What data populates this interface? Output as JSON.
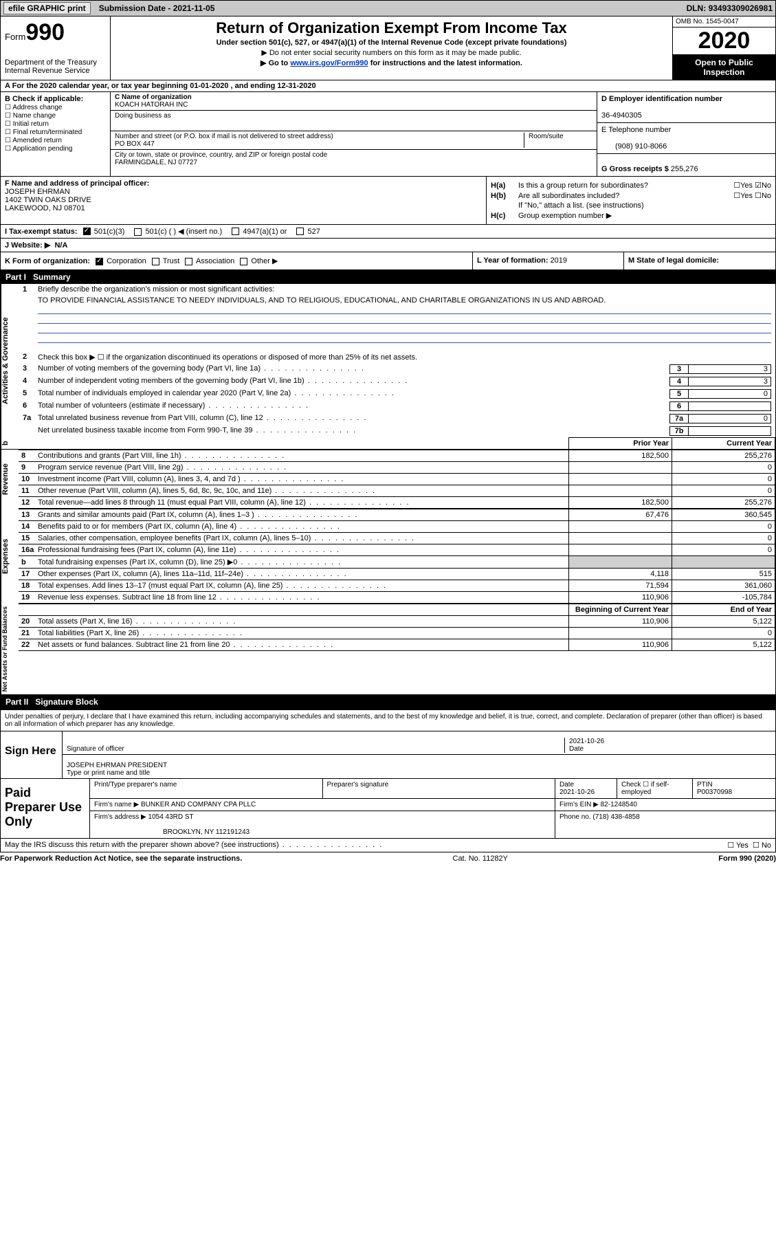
{
  "topbar": {
    "efile": "efile GRAPHIC print",
    "submission_label": "Submission Date - ",
    "submission_date": "2021-11-05",
    "dln_label": "DLN: ",
    "dln": "93493309026981"
  },
  "header": {
    "form_word": "Form",
    "form_num": "990",
    "dept": "Department of the Treasury",
    "irs": "Internal Revenue Service",
    "title": "Return of Organization Exempt From Income Tax",
    "sub1": "Under section 501(c), 527, or 4947(a)(1) of the Internal Revenue Code (except private foundations)",
    "sub2": "▶ Do not enter social security numbers on this form as it may be made public.",
    "sub3_pre": "▶ Go to ",
    "sub3_link": "www.irs.gov/Form990",
    "sub3_post": " for instructions and the latest information.",
    "omb": "OMB No. 1545-0047",
    "year": "2020",
    "open": "Open to Public Inspection"
  },
  "rowA": "For the 2020 calendar year, or tax year beginning 01-01-2020   , and ending 12-31-2020",
  "colB": {
    "hdr": "B Check if applicable:",
    "opts": [
      "Address change",
      "Name change",
      "Initial return",
      "Final return/terminated",
      "Amended return",
      "Application pending"
    ]
  },
  "C": {
    "name_lbl": "C Name of organization",
    "name": "KOACH HATORAH INC",
    "dba_lbl": "Doing business as",
    "street_lbl": "Number and street (or P.O. box if mail is not delivered to street address)",
    "room_lbl": "Room/suite",
    "street": "PO BOX 447",
    "city_lbl": "City or town, state or province, country, and ZIP or foreign postal code",
    "city": "FARMINGDALE, NJ  07727"
  },
  "D": {
    "lbl": "D Employer identification number",
    "val": "36-4940305"
  },
  "E": {
    "lbl": "E Telephone number",
    "val": "(908) 910-8066"
  },
  "G": {
    "lbl": "G Gross receipts $ ",
    "val": "255,276"
  },
  "F": {
    "lbl": "F  Name and address of principal officer:",
    "name": "JOSEPH EHRMAN",
    "addr1": "1402 TWIN OAKS DRIVE",
    "addr2": "LAKEWOOD, NJ  08701"
  },
  "H": {
    "a_lbl": "H(a)",
    "a_txt": "Is this a group return for subordinates?",
    "a_yes": "Yes",
    "a_no": "No",
    "b_lbl": "H(b)",
    "b_txt": "Are all subordinates included?",
    "b_yes": "Yes",
    "b_no": "No",
    "b_note": "If \"No,\" attach a list. (see instructions)",
    "c_lbl": "H(c)",
    "c_txt": "Group exemption number ▶"
  },
  "I": {
    "lbl": "I   Tax-exempt status:",
    "o1": "501(c)(3)",
    "o2": "501(c) (  ) ◀ (insert no.)",
    "o3": "4947(a)(1) or",
    "o4": "527"
  },
  "J": {
    "lbl": "J   Website: ▶",
    "val": "N/A"
  },
  "K": {
    "lbl": "K Form of organization:",
    "o1": "Corporation",
    "o2": "Trust",
    "o3": "Association",
    "o4": "Other ▶"
  },
  "L": {
    "lbl": "L Year of formation: ",
    "val": "2019"
  },
  "M": {
    "lbl": "M State of legal domicile:",
    "val": ""
  },
  "part1": {
    "hdr_part": "Part I",
    "hdr_title": "Summary",
    "side1": "Activities & Governance",
    "side2": "Revenue",
    "side3": "Expenses",
    "side4": "Net Assets or Fund Balances",
    "q1_lbl": "1",
    "q1": "Briefly describe the organization's mission or most significant activities:",
    "q1_val": "TO PROVIDE FINANCIAL ASSISTANCE TO NEEDY INDIVIDUALS, AND TO RELIGIOUS, EDUCATIONAL, AND CHARITABLE ORGANIZATIONS IN US AND ABROAD.",
    "q2_lbl": "2",
    "q2": "Check this box ▶ ☐  if the organization discontinued its operations or disposed of more than 25% of its net assets.",
    "lines": [
      {
        "n": "3",
        "t": "Number of voting members of the governing body (Part VI, line 1a)",
        "box": "3",
        "v": "3"
      },
      {
        "n": "4",
        "t": "Number of independent voting members of the governing body (Part VI, line 1b)",
        "box": "4",
        "v": "3"
      },
      {
        "n": "5",
        "t": "Total number of individuals employed in calendar year 2020 (Part V, line 2a)",
        "box": "5",
        "v": "0"
      },
      {
        "n": "6",
        "t": "Total number of volunteers (estimate if necessary)",
        "box": "6",
        "v": ""
      },
      {
        "n": "7a",
        "t": "Total unrelated business revenue from Part VIII, column (C), line 12",
        "box": "7a",
        "v": "0"
      },
      {
        "n": "",
        "t": "Net unrelated business taxable income from Form 990-T, line 39",
        "box": "7b",
        "v": ""
      }
    ],
    "col_b": "b",
    "th_prior": "Prior Year",
    "th_curr": "Current Year",
    "rev": [
      {
        "n": "8",
        "t": "Contributions and grants (Part VIII, line 1h)",
        "p": "182,500",
        "c": "255,276"
      },
      {
        "n": "9",
        "t": "Program service revenue (Part VIII, line 2g)",
        "p": "",
        "c": "0"
      },
      {
        "n": "10",
        "t": "Investment income (Part VIII, column (A), lines 3, 4, and 7d )",
        "p": "",
        "c": "0"
      },
      {
        "n": "11",
        "t": "Other revenue (Part VIII, column (A), lines 5, 6d, 8c, 9c, 10c, and 11e)",
        "p": "",
        "c": "0"
      },
      {
        "n": "12",
        "t": "Total revenue—add lines 8 through 11 (must equal Part VIII, column (A), line 12)",
        "p": "182,500",
        "c": "255,276"
      }
    ],
    "exp": [
      {
        "n": "13",
        "t": "Grants and similar amounts paid (Part IX, column (A), lines 1–3 )",
        "p": "67,476",
        "c": "360,545"
      },
      {
        "n": "14",
        "t": "Benefits paid to or for members (Part IX, column (A), line 4)",
        "p": "",
        "c": "0"
      },
      {
        "n": "15",
        "t": "Salaries, other compensation, employee benefits (Part IX, column (A), lines 5–10)",
        "p": "",
        "c": "0"
      },
      {
        "n": "16a",
        "t": "Professional fundraising fees (Part IX, column (A), line 11e)",
        "p": "",
        "c": "0"
      },
      {
        "n": "b",
        "t": "Total fundraising expenses (Part IX, column (D), line 25) ▶0",
        "p": "GREY",
        "c": "GREY"
      },
      {
        "n": "17",
        "t": "Other expenses (Part IX, column (A), lines 11a–11d, 11f–24e)",
        "p": "4,118",
        "c": "515"
      },
      {
        "n": "18",
        "t": "Total expenses. Add lines 13–17 (must equal Part IX, column (A), line 25)",
        "p": "71,594",
        "c": "361,060"
      },
      {
        "n": "19",
        "t": "Revenue less expenses. Subtract line 18 from line 12",
        "p": "110,906",
        "c": "-105,784"
      }
    ],
    "th_begin": "Beginning of Current Year",
    "th_end": "End of Year",
    "net": [
      {
        "n": "20",
        "t": "Total assets (Part X, line 16)",
        "p": "110,906",
        "c": "5,122"
      },
      {
        "n": "21",
        "t": "Total liabilities (Part X, line 26)",
        "p": "",
        "c": "0"
      },
      {
        "n": "22",
        "t": "Net assets or fund balances. Subtract line 21 from line 20",
        "p": "110,906",
        "c": "5,122"
      }
    ]
  },
  "part2": {
    "hdr_part": "Part II",
    "hdr_title": "Signature Block",
    "decl": "Under penalties of perjury, I declare that I have examined this return, including accompanying schedules and statements, and to the best of my knowledge and belief, it is true, correct, and complete. Declaration of preparer (other than officer) is based on all information of which preparer has any knowledge.",
    "sign_here": "Sign Here",
    "sig_of_officer": "Signature of officer",
    "date_lbl": "Date",
    "sig_date": "2021-10-26",
    "officer_name": "JOSEPH EHRMAN  PRESIDENT",
    "type_name": "Type or print name and title",
    "paid_prep": "Paid Preparer Use Only",
    "pt_name_lbl": "Print/Type preparer's name",
    "prep_sig_lbl": "Preparer's signature",
    "prep_date_lbl": "Date",
    "prep_date": "2021-10-26",
    "self_emp": "Check ☐ if self-employed",
    "ptin_lbl": "PTIN",
    "ptin": "P00370998",
    "firm_name_lbl": "Firm's name    ▶ ",
    "firm_name": "BUNKER AND COMPANY CPA PLLC",
    "firm_ein_lbl": "Firm's EIN ▶ ",
    "firm_ein": "82-1248540",
    "firm_addr_lbl": "Firm's address ▶ ",
    "firm_addr1": "1054 43RD ST",
    "firm_addr2": "BROOKLYN, NY  112191243",
    "phone_lbl": "Phone no. ",
    "phone": "(718) 438-4858",
    "discuss": "May the IRS discuss this return with the preparer shown above? (see instructions)",
    "yes": "Yes",
    "no": "No"
  },
  "footer": {
    "pra": "For Paperwork Reduction Act Notice, see the separate instructions.",
    "cat": "Cat. No. 11282Y",
    "form": "Form 990 (2020)"
  }
}
